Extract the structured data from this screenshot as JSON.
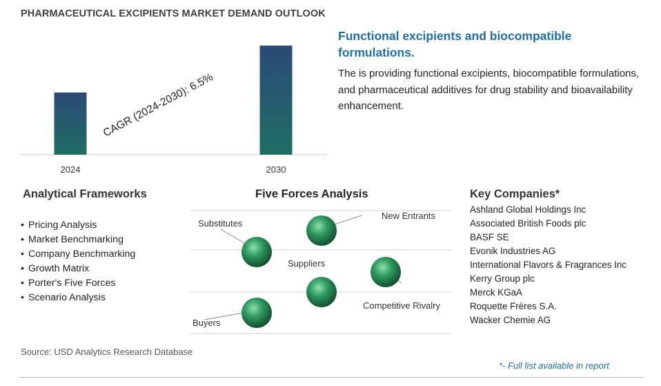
{
  "title": "PHARMACEUTICAL EXCIPIENTS MARKET DEMAND OUTLOOK",
  "chart_data": {
    "type": "bar",
    "categories": [
      "2024",
      "2030"
    ],
    "values": [
      0.57,
      1.0
    ],
    "value_note": "relative bar heights only; no numeric values printed",
    "annotation": "CAGR (2024-2030):   6.5%",
    "colors": [
      "#1f6e64",
      "#2b4a78"
    ],
    "grid": false
  },
  "headline": "Functional excipients and biocompatible formulations.",
  "description": "The is providing functional excipients, biocompatible formulations, and pharmaceutical additives for drug stability and bioavailability enhancement.",
  "analytical_frameworks": {
    "title": "Analytical Frameworks",
    "items": [
      "Pricing Analysis",
      "Market Benchmarking",
      "Company Benchmarking",
      "Growth Matrix",
      "Porter's Five Forces",
      "Scenario Analysis"
    ]
  },
  "five_forces": {
    "title": "Five Forces Analysis",
    "labels": {
      "substitutes": "Substitutes",
      "new_entrants": "New Entrants",
      "suppliers": "Suppliers",
      "competitive_rivalry": "Competitive Rivalry",
      "buyers": "Buyers"
    },
    "sphere_color": "#2e9a60"
  },
  "key_companies": {
    "title": "Key Companies*",
    "items": [
      "Ashland Global Holdings Inc",
      "Associated British Foods plc",
      "BASF SE",
      "Evonik Industries AG",
      "International Flavors & Fragrances Inc",
      "Kerry Group plc",
      "Merck KGaA",
      "Roquette Frères S.A.",
      "Wacker Chemie AG"
    ]
  },
  "source": "Source: USD Analytics Research Database",
  "footnote": "*- Full list available in report"
}
